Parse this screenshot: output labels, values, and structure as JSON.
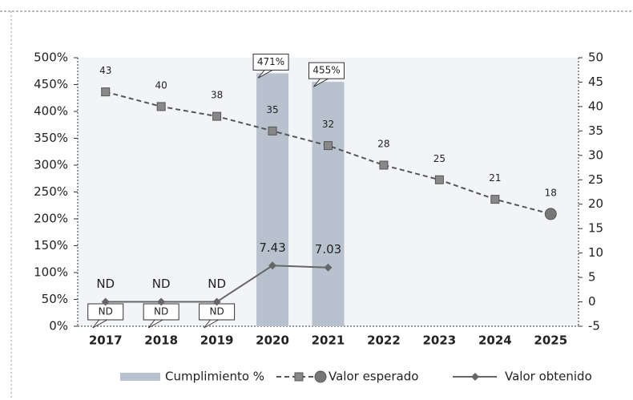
{
  "chart_data": {
    "type": "combo",
    "categories": [
      "2017",
      "2018",
      "2019",
      "2020",
      "2021",
      "2022",
      "2023",
      "2024",
      "2025"
    ],
    "series": [
      {
        "name": "Cumplimiento %",
        "type": "bar",
        "color": "#b8c2ce",
        "values": [
          null,
          null,
          null,
          471,
          455,
          null,
          null,
          null,
          null
        ],
        "value_labels": [
          "ND",
          "ND",
          "ND",
          "471%",
          "455%",
          null,
          null,
          null,
          null
        ]
      },
      {
        "name": "Valor esperado",
        "type": "line",
        "axis": "y2",
        "color": "#555555",
        "dashed": true,
        "marker": "square",
        "end_marker": "circle",
        "values": [
          43,
          40,
          38,
          35,
          32,
          28,
          25,
          21,
          18
        ]
      },
      {
        "name": "Valor obtenido",
        "type": "line",
        "axis": "y2",
        "color": "#666666",
        "dashed": false,
        "marker": "diamond",
        "values": [
          0,
          0,
          0,
          7.43,
          7.03,
          null,
          null,
          null,
          null
        ],
        "value_labels": [
          "ND",
          "ND",
          "ND",
          "7.43",
          "7.03",
          null,
          null,
          null,
          null
        ]
      }
    ],
    "ylim": [
      0,
      500
    ],
    "yticks": [
      {
        "value": 0,
        "label": "0%"
      },
      {
        "value": 50,
        "label": "50%"
      },
      {
        "value": 100,
        "label": "100%"
      },
      {
        "value": 150,
        "label": "150%"
      },
      {
        "value": 200,
        "label": "200%"
      },
      {
        "value": 250,
        "label": "250%"
      },
      {
        "value": 300,
        "label": "300%"
      },
      {
        "value": 350,
        "label": "350%"
      },
      {
        "value": 400,
        "label": "400%"
      },
      {
        "value": 450,
        "label": "450%"
      },
      {
        "value": 500,
        "label": "500%"
      }
    ],
    "y2lim": [
      -5,
      50
    ],
    "y2ticks": [
      -5,
      0,
      5,
      10,
      15,
      20,
      25,
      30,
      35,
      40,
      45,
      50
    ],
    "legend": "bottom"
  }
}
